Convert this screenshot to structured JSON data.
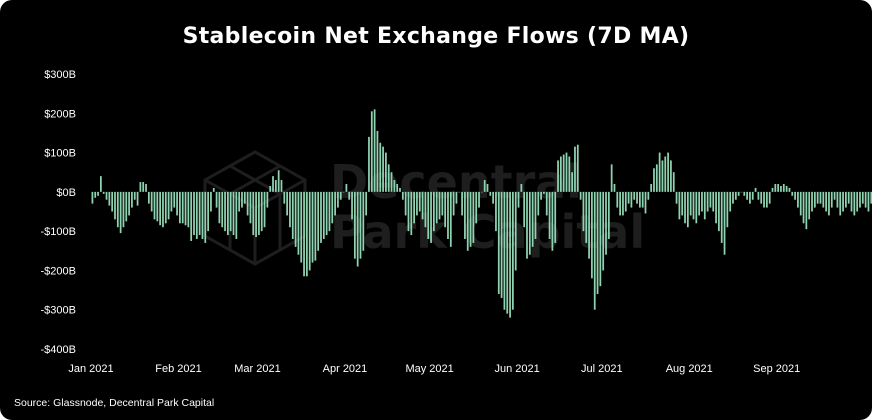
{
  "title": "Stablecoin Net Exchange Flows (7D MA)",
  "source": "Source: Glassnode, Decentral Park Capital",
  "watermark": {
    "line1": "Decentral",
    "line2": "Park Capital",
    "icon": "cube-logo-icon"
  },
  "colors": {
    "background": "#000000",
    "bar": "#8fd4b1",
    "text": "#ffffff",
    "watermark": "#1e1e1e"
  },
  "chart_data": {
    "type": "bar",
    "title": "Stablecoin Net Exchange Flows (7D MA)",
    "xlabel": "",
    "ylabel": "",
    "grid": false,
    "ylim": [
      -400,
      300
    ],
    "y_unit": "$B",
    "y_ticks": [
      {
        "value": 300,
        "label": "$300B"
      },
      {
        "value": 200,
        "label": "$200B"
      },
      {
        "value": 100,
        "label": "$100B"
      },
      {
        "value": 0,
        "label": "$0B"
      },
      {
        "value": -100,
        "label": "-$100B"
      },
      {
        "value": -200,
        "label": "-$200B"
      },
      {
        "value": -300,
        "label": "-$300B"
      },
      {
        "value": -400,
        "label": "-$400B"
      }
    ],
    "x_range": [
      "2021-01-01",
      "2021-09-22"
    ],
    "x_ticks": [
      {
        "date": "2021-01-01",
        "label": "Jan 2021"
      },
      {
        "date": "2021-02-01",
        "label": "Feb 2021"
      },
      {
        "date": "2021-03-01",
        "label": "Mar 2021"
      },
      {
        "date": "2021-04-01",
        "label": "Apr 2021"
      },
      {
        "date": "2021-05-01",
        "label": "May 2021"
      },
      {
        "date": "2021-06-01",
        "label": "Jun 2021"
      },
      {
        "date": "2021-07-01",
        "label": "Jul 2021"
      },
      {
        "date": "2021-08-01",
        "label": "Aug 2021"
      },
      {
        "date": "2021-09-01",
        "label": "Sep 2021"
      }
    ],
    "series": [
      {
        "start_date": "2021-01-01",
        "interval": "1 day",
        "values": [
          -30,
          -15,
          -10,
          40,
          -5,
          -20,
          -35,
          -50,
          -70,
          -90,
          -105,
          -90,
          -75,
          -60,
          -40,
          -20,
          -35,
          25,
          25,
          20,
          -30,
          -50,
          -70,
          -75,
          -85,
          -90,
          -80,
          -70,
          -50,
          -40,
          -60,
          -80,
          -80,
          -85,
          -90,
          -125,
          -110,
          -120,
          -110,
          -120,
          -130,
          -100,
          -50,
          10,
          -40,
          -80,
          -90,
          -100,
          -110,
          -100,
          -110,
          -120,
          -50,
          -40,
          -30,
          -60,
          -80,
          -110,
          -115,
          -110,
          -100,
          -90,
          -40,
          15,
          40,
          30,
          55,
          30,
          -30,
          -60,
          -90,
          -120,
          -140,
          -160,
          -180,
          -215,
          -215,
          -200,
          -180,
          -175,
          -150,
          -130,
          -120,
          -110,
          -100,
          -80,
          -60,
          -40,
          -20,
          0,
          20,
          -20,
          -70,
          -170,
          -190,
          -170,
          -150,
          -60,
          140,
          205,
          210,
          155,
          125,
          115,
          100,
          70,
          50,
          30,
          20,
          10,
          -20,
          -60,
          -100,
          -110,
          -80,
          -60,
          -50,
          -70,
          -90,
          -120,
          -130,
          -100,
          -80,
          -70,
          -60,
          -90,
          -120,
          -140,
          -60,
          -30,
          0,
          -60,
          -120,
          -150,
          -140,
          -130,
          -80,
          -40,
          0,
          30,
          20,
          -10,
          -30,
          -100,
          -260,
          -270,
          -300,
          -310,
          -320,
          -300,
          -200,
          -40,
          20,
          -90,
          -170,
          -160,
          -140,
          -120,
          -60,
          -20,
          -5,
          -60,
          -120,
          -150,
          -130,
          80,
          90,
          95,
          100,
          90,
          50,
          115,
          120,
          -20,
          -100,
          -130,
          -170,
          -220,
          -300,
          -260,
          -240,
          -200,
          -160,
          -120,
          70,
          20,
          -40,
          -60,
          -60,
          -50,
          -30,
          -40,
          -20,
          -30,
          -40,
          -40,
          -55,
          -20,
          20,
          60,
          70,
          100,
          80,
          90,
          100,
          80,
          50,
          -30,
          -70,
          -60,
          -80,
          -90,
          -60,
          -70,
          -80,
          -60,
          -50,
          -70,
          -50,
          -40,
          -50,
          -80,
          -100,
          -130,
          -160,
          -90,
          -50,
          -30,
          -20,
          -10,
          0,
          -10,
          -20,
          -30,
          -20,
          10,
          -20,
          -30,
          -40,
          -40,
          -30,
          10,
          20,
          20,
          15,
          20,
          15,
          10,
          -10,
          -20,
          -40,
          -60,
          -80,
          -95,
          -70,
          -50,
          -40,
          -30,
          -30,
          -40,
          -50,
          -60,
          -40,
          -20,
          -40,
          -60,
          -50,
          -40,
          -30,
          -50,
          -60,
          -50,
          -40,
          -30,
          -40,
          -50,
          -30,
          -20,
          15,
          -20,
          -40,
          -60,
          -70,
          -80,
          -140,
          -90,
          -100,
          -60,
          -80,
          -40,
          -20
        ]
      }
    ]
  }
}
